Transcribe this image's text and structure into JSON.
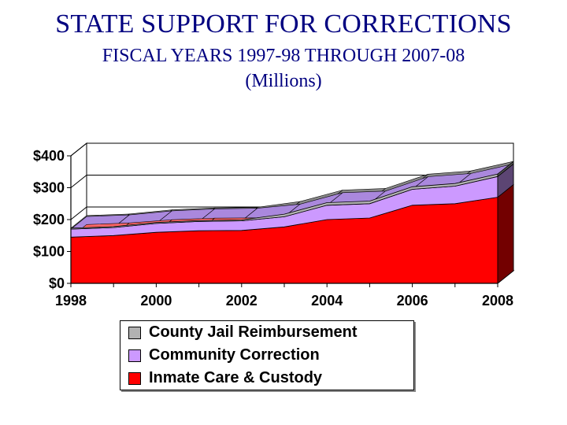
{
  "header": {
    "title": "STATE SUPPORT FOR CORRECTIONS",
    "subtitle": "FISCAL YEARS 1997-98 THROUGH 2007-08",
    "units": "(Millions)"
  },
  "chart_data": {
    "type": "area",
    "stacked": true,
    "three_d": true,
    "x": [
      1998,
      1999,
      2000,
      2001,
      2002,
      2003,
      2004,
      2005,
      2006,
      2007,
      2008
    ],
    "x_tick_labels": [
      "1998",
      "2000",
      "2002",
      "2004",
      "2006",
      "2008"
    ],
    "y_tick_labels": [
      "$0",
      "$100",
      "$200",
      "$300",
      "$400"
    ],
    "ylim": [
      0,
      400
    ],
    "grid": true,
    "legend_position": "bottom",
    "series": [
      {
        "name": "Inmate Care & Custody",
        "color": "#ff0000",
        "values": [
          145,
          150,
          160,
          165,
          166,
          177,
          200,
          205,
          245,
          250,
          270
        ]
      },
      {
        "name": "Community Correction",
        "color": "#cc99ff",
        "values": [
          25,
          25,
          28,
          29,
          30,
          32,
          45,
          45,
          50,
          55,
          65
        ]
      },
      {
        "name": "County Jail Reimbursement",
        "color": "#b2b2b2",
        "values": [
          3,
          3,
          3,
          3,
          3,
          8,
          8,
          8,
          8,
          8,
          8
        ]
      }
    ]
  }
}
